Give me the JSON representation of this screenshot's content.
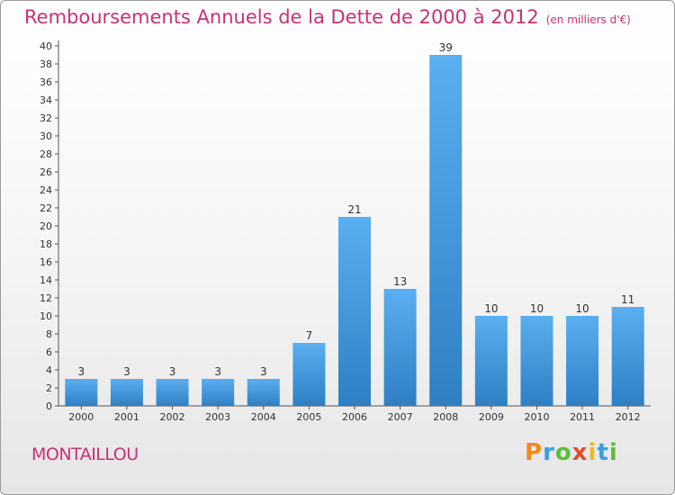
{
  "header": {
    "title": "Remboursements Annuels de la Dette de 2000 à 2012",
    "unit": "(en milliers d'€)"
  },
  "footer": {
    "place": "MONTAILLOU",
    "logo": "Proxiti"
  },
  "colors": {
    "title": "#c8307a",
    "bar_top": "#5aaff0",
    "bar_bottom": "#2f7fc4",
    "logo": [
      "#f08a1c",
      "#3aa0e0",
      "#5abf3a",
      "#e0502a",
      "#f0b81c",
      "#3aa0e0",
      "#5abf3a"
    ]
  },
  "chart_data": {
    "type": "bar",
    "categories": [
      "2000",
      "2001",
      "2002",
      "2003",
      "2004",
      "2005",
      "2006",
      "2007",
      "2008",
      "2009",
      "2010",
      "2011",
      "2012"
    ],
    "values": [
      3,
      3,
      3,
      3,
      3,
      7,
      21,
      13,
      39,
      10,
      10,
      10,
      11
    ],
    "ylim": [
      0,
      40
    ],
    "yticks": [
      0,
      2,
      4,
      6,
      8,
      10,
      12,
      14,
      16,
      18,
      20,
      22,
      24,
      26,
      28,
      30,
      32,
      34,
      36,
      38,
      40
    ],
    "grid": false,
    "data_labels": true
  }
}
